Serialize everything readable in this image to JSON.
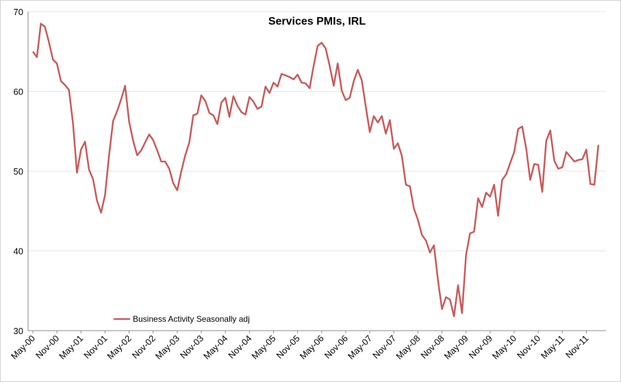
{
  "chart_data": {
    "type": "line",
    "title": "Services PMIs, IRL",
    "categories": [
      "May-00",
      null,
      null,
      null,
      null,
      null,
      "Nov-00",
      null,
      null,
      null,
      null,
      null,
      "May-01",
      null,
      null,
      null,
      null,
      null,
      "Nov-01",
      null,
      null,
      null,
      null,
      null,
      "May-02",
      null,
      null,
      null,
      null,
      null,
      "Nov-02",
      null,
      null,
      null,
      null,
      null,
      "May-03",
      null,
      null,
      null,
      null,
      null,
      "Nov-03",
      null,
      null,
      null,
      null,
      null,
      "May-04",
      null,
      null,
      null,
      null,
      null,
      "Nov-04",
      null,
      null,
      null,
      null,
      null,
      "May-05",
      null,
      null,
      null,
      null,
      null,
      "Nov-05",
      null,
      null,
      null,
      null,
      null,
      "May-06",
      null,
      null,
      null,
      null,
      null,
      "Nov-06",
      null,
      null,
      null,
      null,
      null,
      "May-07",
      null,
      null,
      null,
      null,
      null,
      "Nov-07",
      null,
      null,
      null,
      null,
      null,
      "May-08",
      null,
      null,
      null,
      null,
      null,
      "Nov-08",
      null,
      null,
      null,
      null,
      null,
      "May-09",
      null,
      null,
      null,
      null,
      null,
      "Nov-09",
      null,
      null,
      null,
      null,
      null,
      "May-10",
      null,
      null,
      null,
      null,
      null,
      "Nov-10",
      null,
      null,
      null,
      null,
      null,
      "May-11",
      null,
      null,
      null,
      null,
      null,
      "Nov-11",
      null,
      null,
      null
    ],
    "series": [
      {
        "name": "Business Activity Seasonally adj",
        "color": "#c85a5a",
        "values": [
          65.0,
          64.3,
          68.5,
          68.1,
          66.2,
          64.0,
          63.5,
          61.3,
          60.8,
          60.2,
          56.0,
          49.8,
          52.7,
          53.7,
          50.2,
          49.0,
          46.3,
          44.8,
          47.0,
          52.0,
          56.3,
          57.5,
          59.0,
          60.7,
          56.2,
          53.8,
          52.0,
          52.6,
          53.6,
          54.6,
          53.9,
          52.6,
          51.2,
          51.2,
          50.3,
          48.5,
          47.6,
          50.0,
          52.0,
          53.6,
          57.0,
          57.2,
          59.5,
          58.8,
          57.3,
          57.0,
          55.9,
          58.6,
          59.2,
          56.8,
          59.4,
          58.2,
          57.4,
          57.1,
          59.3,
          58.7,
          57.8,
          58.1,
          60.6,
          59.8,
          61.1,
          60.6,
          62.2,
          62.0,
          61.8,
          61.5,
          62.1,
          61.1,
          61.0,
          60.4,
          63.2,
          65.7,
          66.1,
          65.4,
          63.2,
          60.7,
          63.5,
          60.1,
          58.9,
          59.2,
          61.3,
          62.7,
          61.4,
          58.1,
          54.9,
          56.9,
          56.1,
          56.9,
          54.7,
          56.4,
          52.8,
          53.5,
          51.9,
          48.3,
          48.1,
          45.3,
          43.9,
          42.0,
          41.3,
          39.8,
          40.7,
          36.3,
          32.7,
          34.2,
          33.9,
          31.8,
          35.7,
          32.2,
          39.5,
          42.2,
          42.4,
          46.6,
          45.5,
          47.3,
          46.8,
          48.3,
          44.4,
          48.9,
          49.6,
          51.0,
          52.4,
          55.3,
          55.6,
          52.8,
          48.9,
          50.9,
          50.8,
          47.4,
          53.8,
          55.1,
          51.3,
          50.3,
          50.5,
          52.4,
          51.8,
          51.2,
          51.4,
          51.5,
          52.7,
          48.4,
          48.3,
          53.3
        ]
      }
    ],
    "ylim": [
      30,
      70
    ],
    "yticks": [
      30,
      40,
      50,
      60,
      70
    ],
    "grid": true,
    "legend": "lower left"
  }
}
